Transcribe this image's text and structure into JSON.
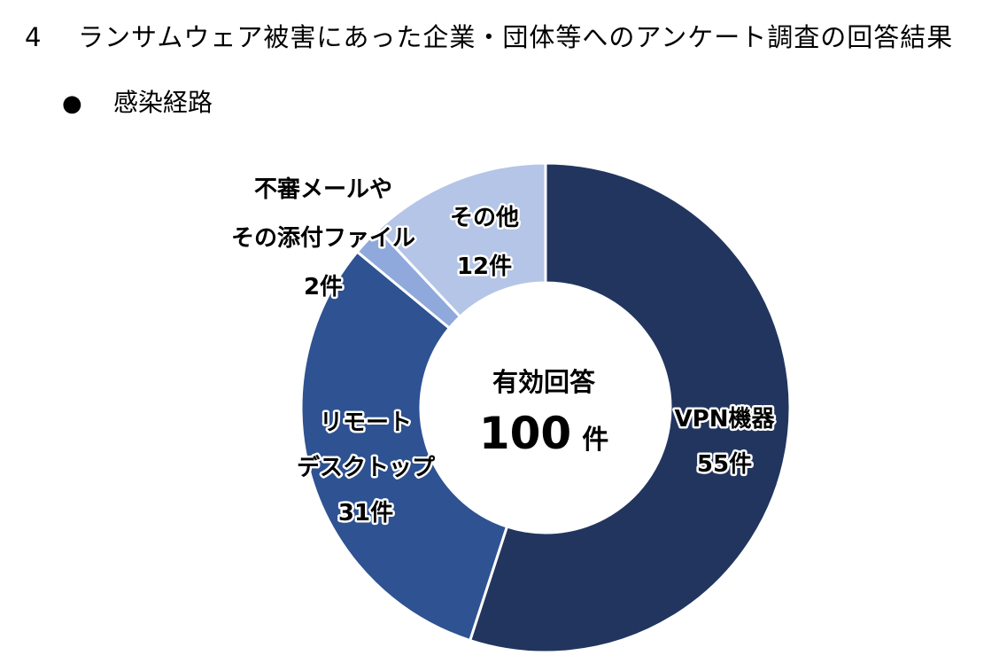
{
  "heading": {
    "number": "4",
    "text": "ランサムウェア被害にあった企業・団体等へのアンケート調査の回答結果"
  },
  "subheading": {
    "bullet": "●",
    "text": "感染経路"
  },
  "chart_data": {
    "type": "donut",
    "total_label": "有効回答",
    "total_value": 100,
    "total_unit": "件",
    "categories": [
      "VPN機器",
      "リモートデスクトップ",
      "不審メールやその添付ファイル",
      "その他"
    ],
    "values": [
      55,
      31,
      2,
      12
    ],
    "unit": "件",
    "colors": [
      "#21355f",
      "#2e5292",
      "#8fa9dc",
      "#b4c5e7"
    ],
    "label_lines": [
      [
        "VPN機器",
        "55件"
      ],
      [
        "リモート",
        "デスクトップ",
        "31件"
      ],
      [
        "不審メールや",
        "その添付ファイル",
        "2件"
      ],
      [
        "その他",
        "12件"
      ]
    ]
  }
}
